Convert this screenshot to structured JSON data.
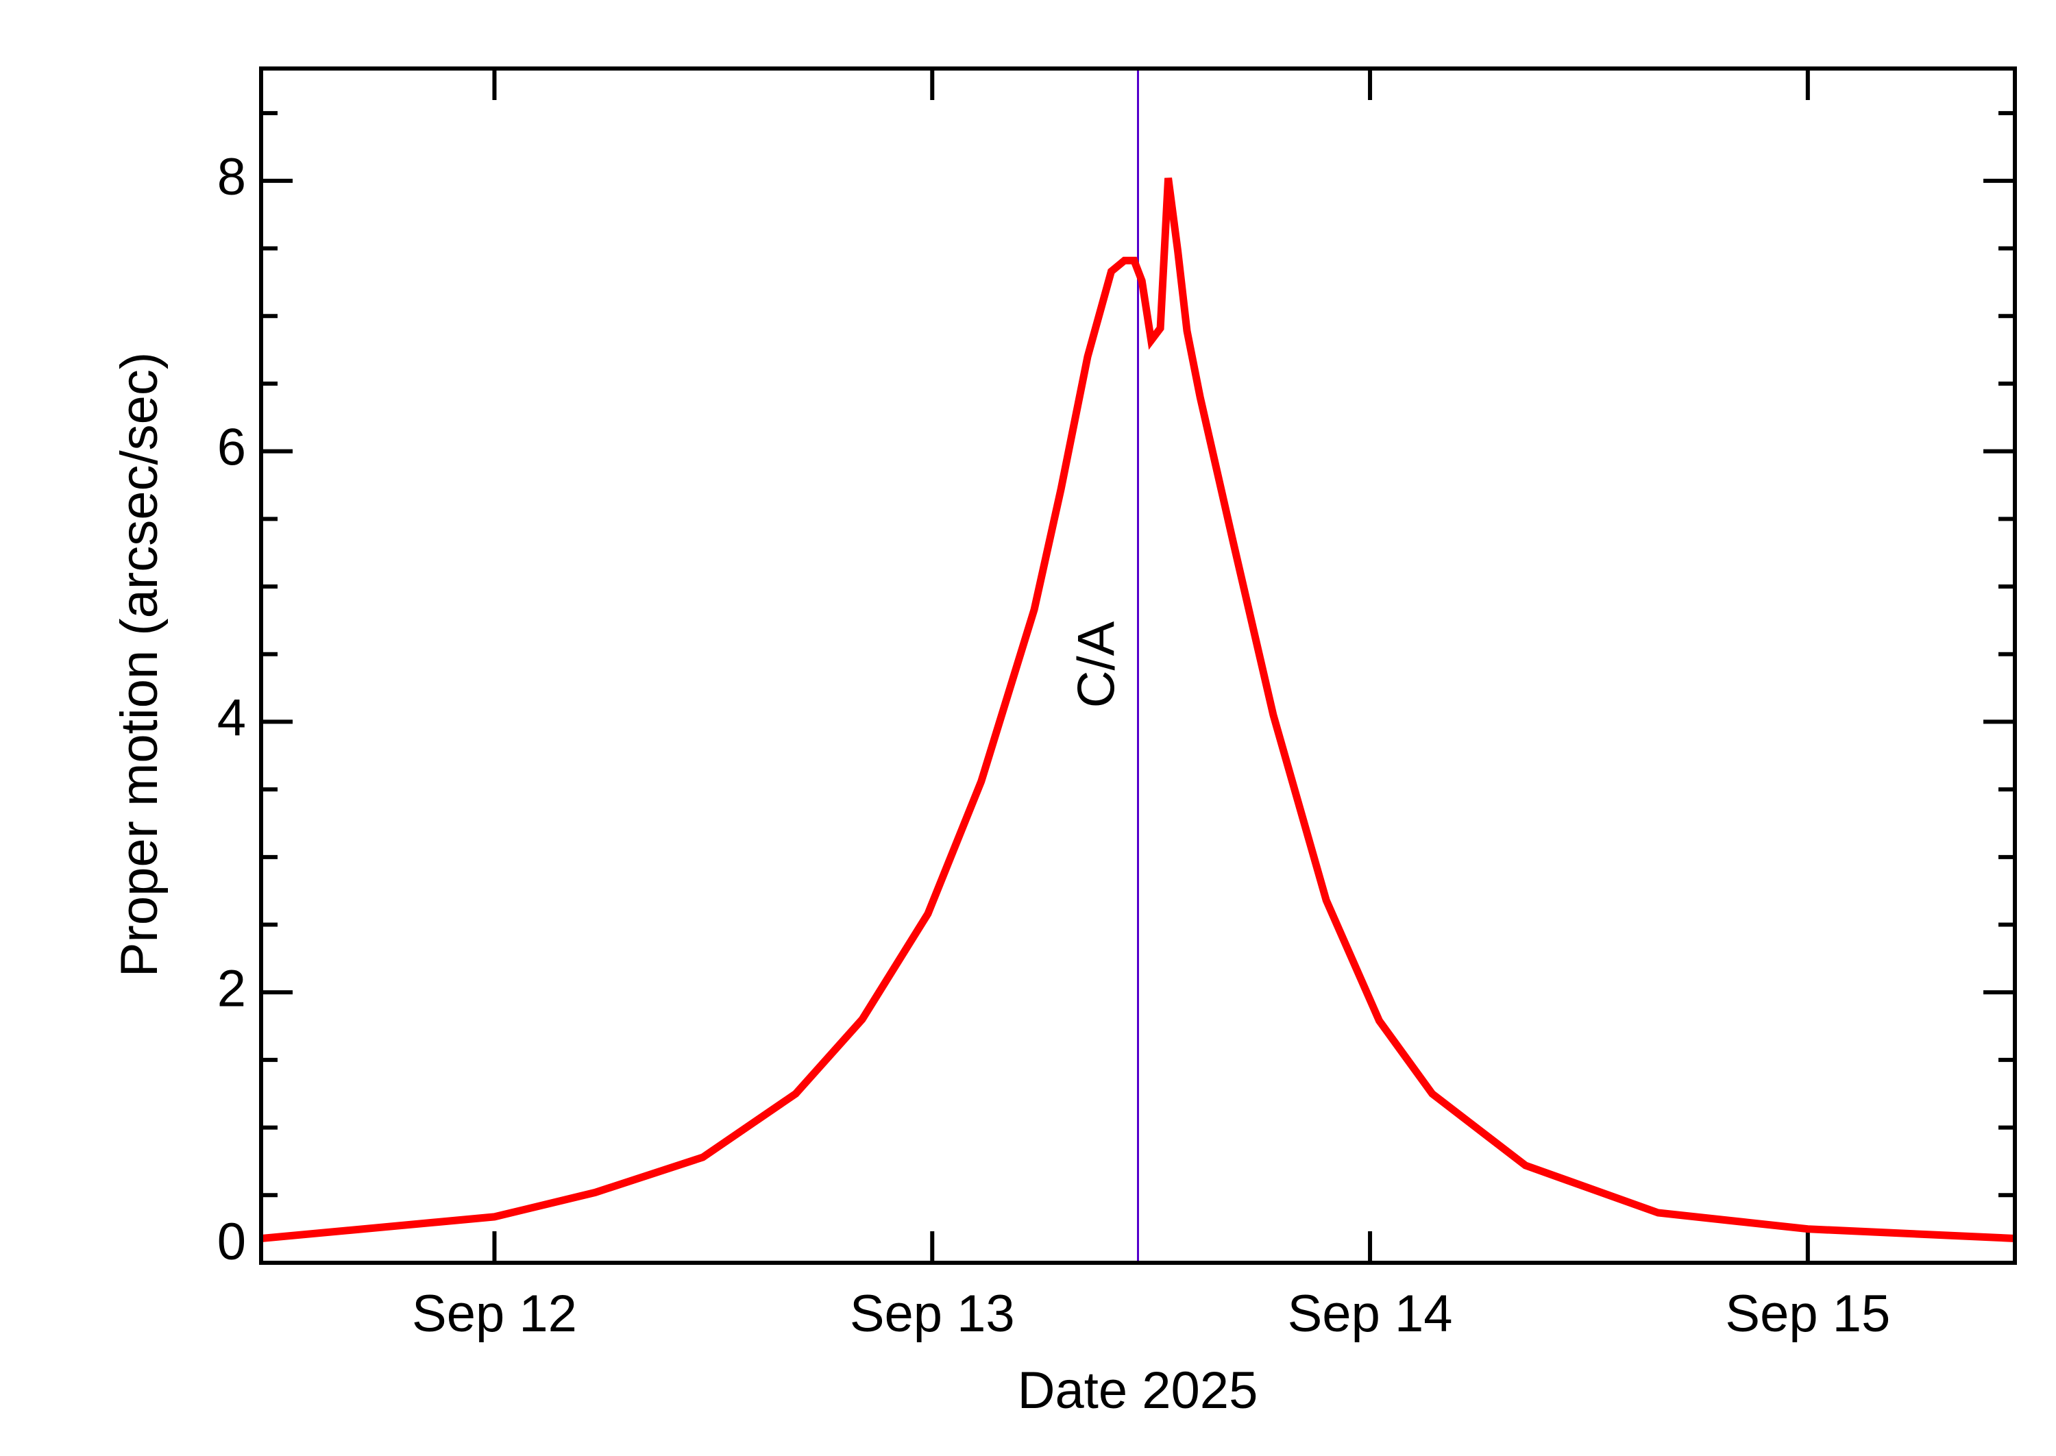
{
  "chart_data": {
    "type": "line",
    "xlabel": "Date 2025",
    "ylabel": "Proper motion (arcsec/sec)",
    "x": [
      11.467,
      12.0,
      12.23,
      12.476,
      12.688,
      12.84,
      12.99,
      13.112,
      13.233,
      13.294,
      13.355,
      13.409,
      13.439,
      13.461,
      13.479,
      13.5,
      13.521,
      13.539,
      13.561,
      13.582,
      13.612,
      13.688,
      13.779,
      13.9,
      14.021,
      14.142,
      14.355,
      14.658,
      15.0,
      15.473
    ],
    "series": [
      {
        "name": "Proper motion",
        "color": "#ff0000",
        "values": [
          0.18,
          0.34,
          0.52,
          0.78,
          1.25,
          1.8,
          2.58,
          3.56,
          4.83,
          5.72,
          6.7,
          7.33,
          7.41,
          7.41,
          7.26,
          6.82,
          6.91,
          8.02,
          7.48,
          6.89,
          6.4,
          5.32,
          4.05,
          2.68,
          1.79,
          1.25,
          0.72,
          0.37,
          0.25,
          0.18
        ]
      }
    ],
    "xlim": [
      11.467,
      15.473
    ],
    "xticks": [
      {
        "value": 12,
        "label": "Sep 12"
      },
      {
        "value": 13,
        "label": "Sep 13"
      },
      {
        "value": 14,
        "label": "Sep 14"
      },
      {
        "value": 15,
        "label": "Sep 15"
      }
    ],
    "ylim": [
      0,
      8.83
    ],
    "yticks": [
      0,
      2,
      4,
      6,
      8
    ],
    "yminorticks": [
      0.5,
      1,
      1.5,
      2.5,
      3,
      3.5,
      4.5,
      5,
      5.5,
      6.5,
      7,
      7.5,
      8.5
    ],
    "annotations": [
      {
        "text": "C/A",
        "x": 13.47,
        "color": "#5500cc"
      }
    ]
  }
}
